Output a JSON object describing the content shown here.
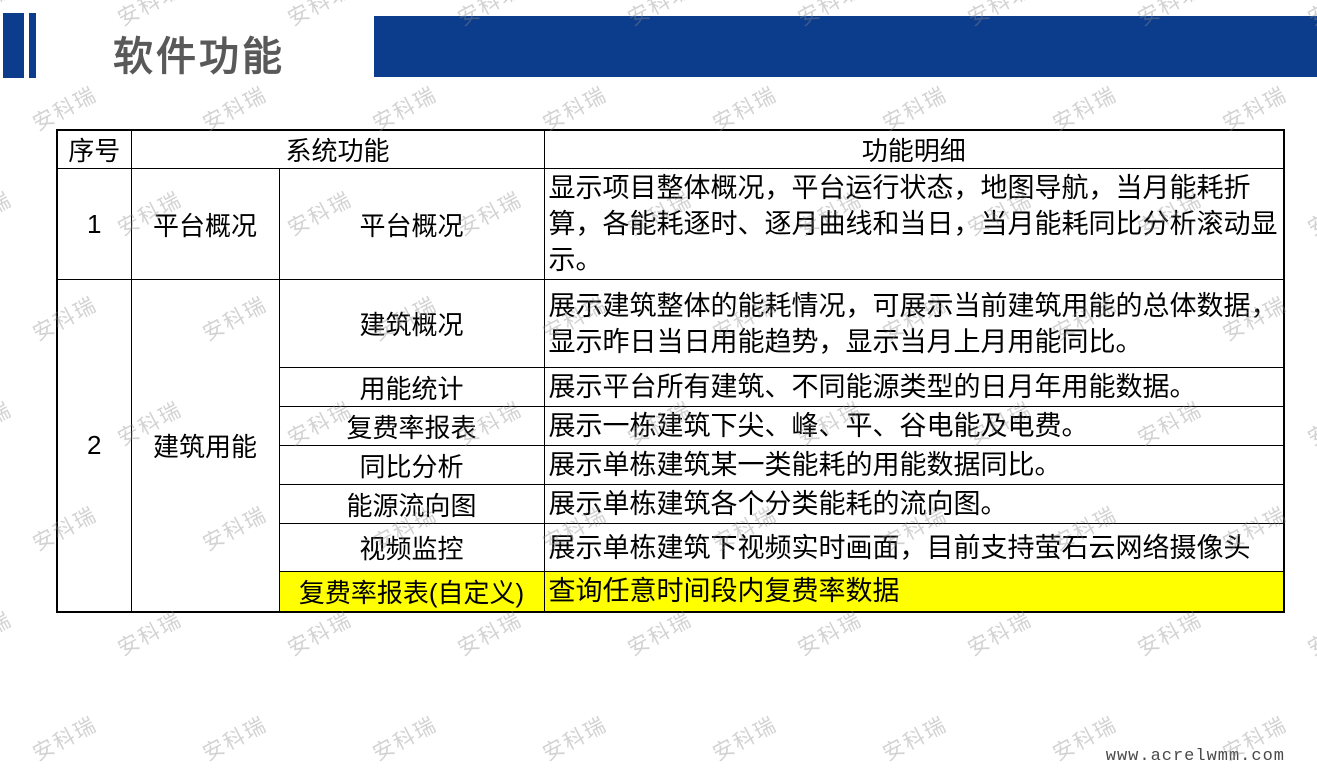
{
  "header": {
    "title": "软件功能"
  },
  "watermark": {
    "text": "安科瑞"
  },
  "footer": {
    "url": "www.acrelwmm.com"
  },
  "colors": {
    "accent_blue": "#0C3D8C",
    "title_gray": "#595959",
    "highlight_yellow": "#FFFF00",
    "border_black": "#000000"
  },
  "table": {
    "columns": [
      "序号",
      "系统功能",
      "功能明细"
    ],
    "rows": [
      {
        "no": "1",
        "category": "平台概况",
        "function": "平台概况",
        "detail": "显示项目整体概况，平台运行状态，地图导航，当月能耗折算，各能耗逐时、逐月曲线和当日，当月能耗同比分析滚动显示。"
      },
      {
        "no": "2",
        "category": "建筑用能",
        "function": "建筑概况",
        "detail": "展示建筑整体的能耗情况，可展示当前建筑用能的总体数据，显示昨日当日用能趋势，显示当月上月用能同比。"
      },
      {
        "function": "用能统计",
        "detail": "展示平台所有建筑、不同能源类型的日月年用能数据。"
      },
      {
        "function": "复费率报表",
        "detail": "展示一栋建筑下尖、峰、平、谷电能及电费。"
      },
      {
        "function": "同比分析",
        "detail": "展示单栋建筑某一类能耗的用能数据同比。"
      },
      {
        "function": "能源流向图",
        "detail": "展示单栋建筑各个分类能耗的流向图。"
      },
      {
        "function": "视频监控",
        "detail": "展示单栋建筑下视频实时画面，目前支持萤石云网络摄像头"
      },
      {
        "function": "复费率报表(自定义)",
        "detail": "查询任意时间段内复费率数据",
        "highlighted": true
      }
    ]
  }
}
